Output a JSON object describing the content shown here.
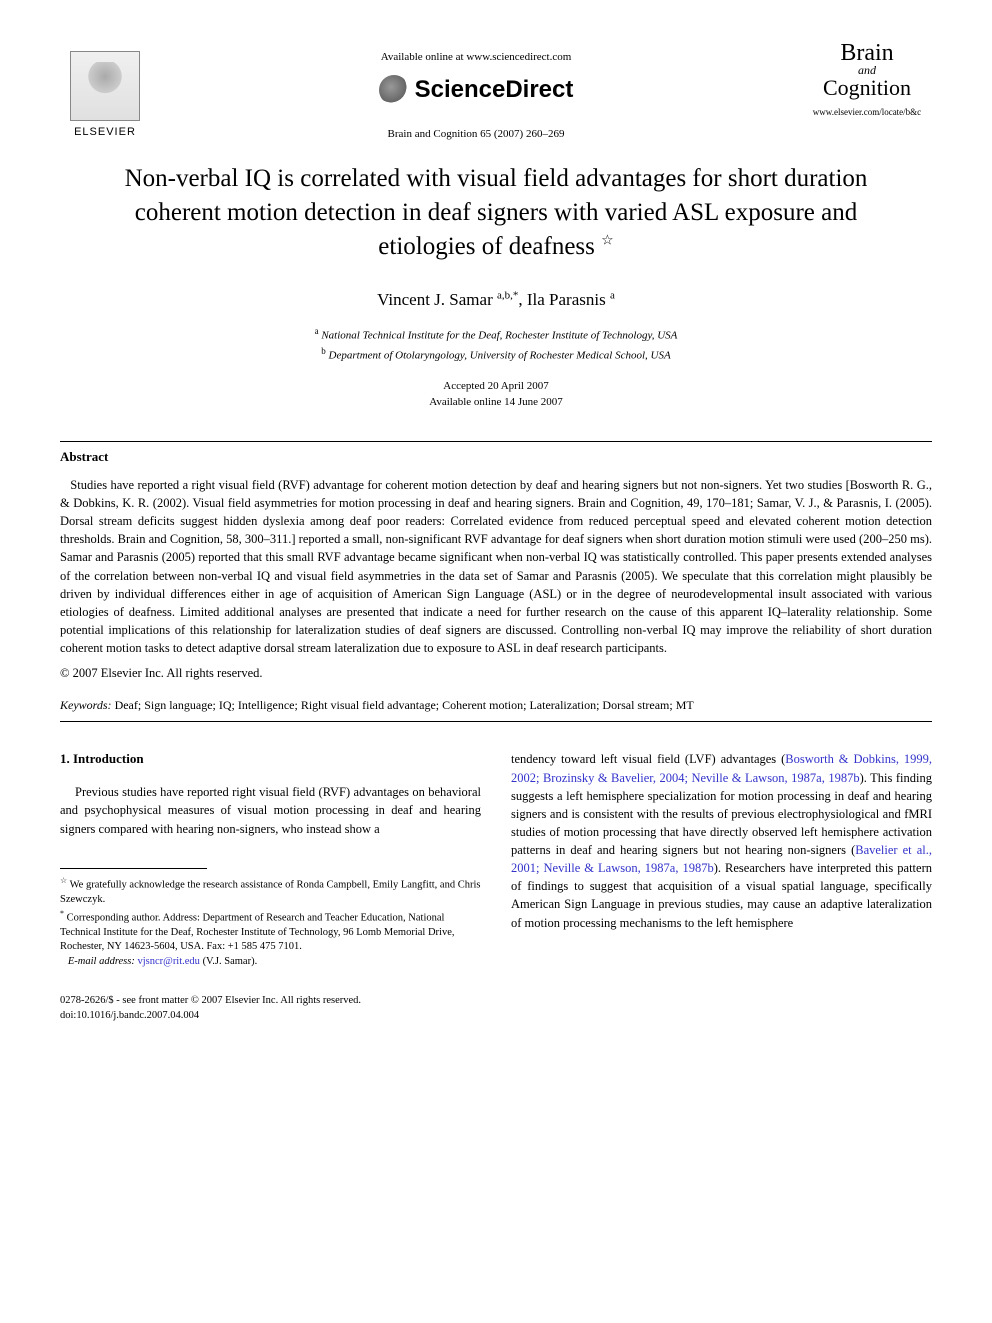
{
  "header": {
    "elsevier_label": "ELSEVIER",
    "available_online": "Available online at www.sciencedirect.com",
    "sciencedirect": "ScienceDirect",
    "citation": "Brain and Cognition 65 (2007) 260–269",
    "journal_brain": "Brain",
    "journal_and": "and",
    "journal_cognition": "Cognition",
    "journal_url": "www.elsevier.com/locate/b&c"
  },
  "title": "Non-verbal IQ is correlated with visual field advantages for short duration coherent motion detection in deaf signers with varied ASL exposure and etiologies of deafness",
  "title_star": "☆",
  "authors": {
    "line_html_parts": [
      "Vincent J. Samar ",
      "a,b,*",
      ", Ila Parasnis ",
      "a"
    ]
  },
  "affiliations": {
    "a": "National Technical Institute for the Deaf, Rochester Institute of Technology, USA",
    "b": "Department of Otolaryngology, University of Rochester Medical School, USA"
  },
  "dates": {
    "accepted": "Accepted 20 April 2007",
    "online": "Available online 14 June 2007"
  },
  "abstract": {
    "heading": "Abstract",
    "body": "Studies have reported a right visual field (RVF) advantage for coherent motion detection by deaf and hearing signers but not non-signers. Yet two studies [Bosworth R. G., & Dobkins, K. R. (2002). Visual field asymmetries for motion processing in deaf and hearing signers. Brain and Cognition, 49, 170–181; Samar, V. J., & Parasnis, I. (2005). Dorsal stream deficits suggest hidden dyslexia among deaf poor readers: Correlated evidence from reduced perceptual speed and elevated coherent motion detection thresholds. Brain and Cognition, 58, 300–311.] reported a small, non-significant RVF advantage for deaf signers when short duration motion stimuli were used (200–250 ms). Samar and Parasnis (2005) reported that this small RVF advantage became significant when non-verbal IQ was statistically controlled. This paper presents extended analyses of the correlation between non-verbal IQ and visual field asymmetries in the data set of Samar and Parasnis (2005). We speculate that this correlation might plausibly be driven by individual differences either in age of acquisition of American Sign Language (ASL) or in the degree of neurodevelopmental insult associated with various etiologies of deafness. Limited additional analyses are presented that indicate a need for further research on the cause of this apparent IQ–laterality relationship. Some potential implications of this relationship for lateralization studies of deaf signers are discussed. Controlling non-verbal IQ may improve the reliability of short duration coherent motion tasks to detect adaptive dorsal stream lateralization due to exposure to ASL in deaf research participants.",
    "copyright": "© 2007 Elsevier Inc. All rights reserved."
  },
  "keywords": {
    "label": "Keywords:",
    "list": "Deaf; Sign language; IQ; Intelligence; Right visual field advantage; Coherent motion; Lateralization; Dorsal stream; MT"
  },
  "intro": {
    "heading": "1. Introduction",
    "left_para": "Previous studies have reported right visual field (RVF) advantages on behavioral and psychophysical measures of visual motion processing in deaf and hearing signers compared with hearing non-signers, who instead show a",
    "right_para_prefix": "tendency toward left visual field (LVF) advantages (",
    "right_refs1": "Bosworth & Dobkins, 1999, 2002; Brozinsky & Bavelier, 2004; Neville & Lawson, 1987a, 1987b",
    "right_para_mid1": "). This finding suggests a left hemisphere specialization for motion processing in deaf and hearing signers and is consistent with the results of previous electrophysiological and fMRI studies of motion processing that have directly observed left hemisphere activation patterns in deaf and hearing signers but not hearing non-signers (",
    "right_refs2": "Bavelier et al., 2001; Neville & Lawson, 1987a, 1987b",
    "right_para_suffix": "). Researchers have interpreted this pattern of findings to suggest that acquisition of a visual spatial language, specifically American Sign Language in previous studies, may cause an adaptive lateralization of motion processing mechanisms to the left hemisphere"
  },
  "footnotes": {
    "ack": "We gratefully acknowledge the research assistance of Ronda Campbell, Emily Langfitt, and Chris Szewczyk.",
    "corr": "Corresponding author. Address: Department of Research and Teacher Education, National Technical Institute for the Deaf, Rochester Institute of Technology, 96 Lomb Memorial Drive, Rochester, NY 14623-5604, USA. Fax: +1 585 475 7101.",
    "email_label": "E-mail address:",
    "email": "vjsncr@rit.edu",
    "email_suffix": "(V.J. Samar)."
  },
  "page_footer": {
    "line1": "0278-2626/$ - see front matter © 2007 Elsevier Inc. All rights reserved.",
    "line2": "doi:10.1016/j.bandc.2007.04.004"
  },
  "colors": {
    "link": "#3333cc",
    "text": "#000000",
    "bg": "#ffffff"
  }
}
